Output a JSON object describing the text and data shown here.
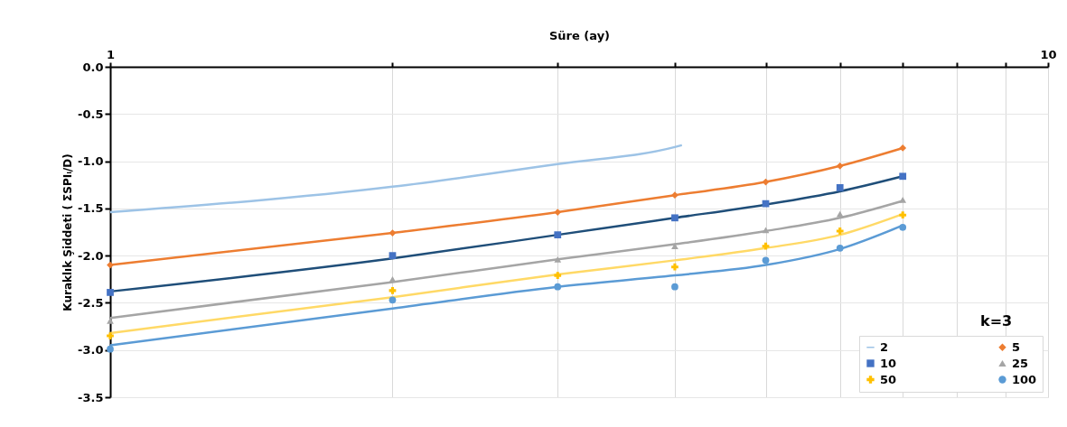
{
  "chart_data": {
    "type": "scatter",
    "xlabel": "Süre (ay)",
    "ylabel": "Kuraklık Şiddeti ( ΣSPIᵢ/D)",
    "log": "x",
    "xlim": [
      1,
      10
    ],
    "ylim": [
      -3.5,
      0
    ],
    "xticks": [
      1,
      {
        "value": 2,
        "label": null
      },
      {
        "value": 3,
        "label": null
      },
      {
        "value": 4,
        "label": null
      },
      {
        "value": 5,
        "label": null
      },
      {
        "value": 6,
        "label": null
      },
      {
        "value": 7,
        "label": null
      },
      {
        "value": 8,
        "label": null
      },
      {
        "value": 9,
        "label": null
      },
      10
    ],
    "yticks": [
      {
        "value": -3.5,
        "label": "-3.5"
      },
      {
        "value": -3,
        "label": "-3.0"
      },
      {
        "value": -2.5,
        "label": "-2.5"
      },
      {
        "value": -2,
        "label": "-2.0"
      },
      {
        "value": -1.5,
        "label": "-1.5"
      },
      {
        "value": -1,
        "label": "-1.0"
      },
      {
        "value": -0.5,
        "label": "-0.5"
      },
      {
        "value": 0,
        "label": "0.0"
      }
    ],
    "grid": true,
    "legend": "bottom right",
    "annotations": [
      "k=3"
    ],
    "series": [
      {
        "name": "2",
        "type": "line",
        "marker": "none",
        "color": "#9dc3e6",
        "x": [
          1,
          2,
          3,
          4,
          4.07
        ],
        "values": [
          -1.54,
          -1.27,
          -1.03,
          -0.85,
          -0.83
        ]
      },
      {
        "name": "5",
        "marker": "diamond",
        "color": "#ed7d31",
        "x": [
          1,
          2,
          3,
          4,
          5,
          6,
          7
        ],
        "values": [
          -2.1,
          -1.76,
          -1.54,
          -1.36,
          -1.22,
          -1.05,
          -0.86
        ]
      },
      {
        "name": "10",
        "marker": "square",
        "color": "#4472c4",
        "x": [
          1,
          2,
          3,
          4,
          5,
          6,
          7
        ],
        "values": [
          -2.39,
          -2.0,
          -1.78,
          -1.6,
          -1.45,
          -1.28,
          -1.16
        ]
      },
      {
        "name": "25",
        "marker": "triangle",
        "color": "#a5a5a5",
        "x": [
          1,
          2,
          3,
          4,
          5,
          6,
          7
        ],
        "values": [
          -2.69,
          -2.25,
          -2.04,
          -1.9,
          -1.73,
          -1.56,
          -1.41
        ]
      },
      {
        "name": "50",
        "marker": "cross",
        "color": "#ffc000",
        "x": [
          1,
          2,
          3,
          4,
          5,
          6,
          7
        ],
        "values": [
          -2.85,
          -2.37,
          -2.21,
          -2.12,
          -1.9,
          -1.74,
          -1.57
        ]
      },
      {
        "name": "100",
        "marker": "circle",
        "color": "#5b9bd5",
        "x": [
          1,
          2,
          3,
          4,
          5,
          6,
          7
        ],
        "values": [
          -2.99,
          -2.47,
          -2.33,
          -2.33,
          -2.05,
          -1.92,
          -1.7
        ]
      },
      {
        "type": "line",
        "marker": "none",
        "color": "#ed7d31",
        "x": [
          1,
          2,
          3,
          4,
          5,
          6,
          7
        ],
        "values": [
          -2.1,
          -1.76,
          -1.54,
          -1.36,
          -1.22,
          -1.05,
          -0.86
        ]
      },
      {
        "type": "line",
        "marker": "none",
        "color": "#1f4e79",
        "x": [
          1,
          2,
          3,
          4,
          5,
          6,
          7
        ],
        "values": [
          -2.38,
          -2.03,
          -1.78,
          -1.6,
          -1.46,
          -1.32,
          -1.16
        ]
      },
      {
        "type": "line",
        "marker": "none",
        "color": "#a5a5a5",
        "x": [
          1,
          2,
          3,
          4,
          5,
          6,
          7
        ],
        "values": [
          -2.66,
          -2.28,
          -2.04,
          -1.88,
          -1.74,
          -1.6,
          -1.42
        ]
      },
      {
        "type": "line",
        "marker": "none",
        "color": "#ffd966",
        "x": [
          1,
          2,
          3,
          4,
          5,
          6,
          7
        ],
        "values": [
          -2.82,
          -2.44,
          -2.2,
          -2.05,
          -1.92,
          -1.78,
          -1.56
        ]
      },
      {
        "type": "line",
        "marker": "none",
        "color": "#5b9bd5",
        "x": [
          1,
          2,
          3,
          4,
          5,
          6,
          7
        ],
        "values": [
          -2.95,
          -2.56,
          -2.33,
          -2.21,
          -2.1,
          -1.93,
          -1.68
        ]
      }
    ]
  }
}
